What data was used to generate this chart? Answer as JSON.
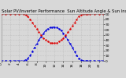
{
  "title": "Solar PV/Inverter Performance  Sun Altitude Angle & Sun Incidence Angle on PV Panels",
  "x_values": [
    0,
    1,
    2,
    3,
    4,
    5,
    5.5,
    6,
    6.5,
    7,
    7.5,
    8,
    8.5,
    9,
    9.5,
    10,
    10.5,
    11,
    11.5,
    12,
    12.5,
    13,
    13.5,
    14,
    14.5,
    15,
    15.5,
    16,
    16.5,
    17,
    17.5,
    18,
    18.5,
    19,
    19.5,
    20,
    21,
    22,
    23
  ],
  "sun_altitude": [
    0,
    0,
    0,
    0,
    0,
    0,
    2,
    5,
    10,
    18,
    26,
    33,
    40,
    47,
    53,
    58,
    62,
    64,
    65,
    65,
    64,
    62,
    58,
    53,
    47,
    40,
    33,
    26,
    18,
    11,
    5,
    2,
    0,
    0,
    0,
    0,
    0,
    0,
    0
  ],
  "sun_incidence": [
    90,
    90,
    90,
    90,
    90,
    90,
    88,
    85,
    80,
    74,
    67,
    61,
    55,
    49,
    44,
    40,
    37,
    35,
    34,
    34,
    35,
    37,
    40,
    44,
    49,
    55,
    61,
    67,
    74,
    80,
    86,
    89,
    90,
    90,
    90,
    90,
    90,
    90,
    90
  ],
  "blue_color": "#0000dd",
  "red_color": "#dd0000",
  "bg_color": "#d8d8d8",
  "grid_color": "#b0b0b0",
  "ylim": [
    0,
    90
  ],
  "xlim": [
    0,
    23
  ],
  "yticks": [
    0,
    10,
    20,
    30,
    40,
    50,
    60,
    70,
    80,
    90
  ],
  "xtick_labels": [
    "0",
    "2",
    "4",
    "6",
    "8",
    "10",
    "12",
    "14",
    "16",
    "18",
    "20",
    "22"
  ],
  "xtick_positions": [
    0,
    2,
    4,
    6,
    8,
    10,
    12,
    14,
    16,
    18,
    20,
    22
  ],
  "title_fontsize": 3.8,
  "tick_fontsize": 3.2,
  "line_width": 0.7,
  "marker_size": 1.5
}
